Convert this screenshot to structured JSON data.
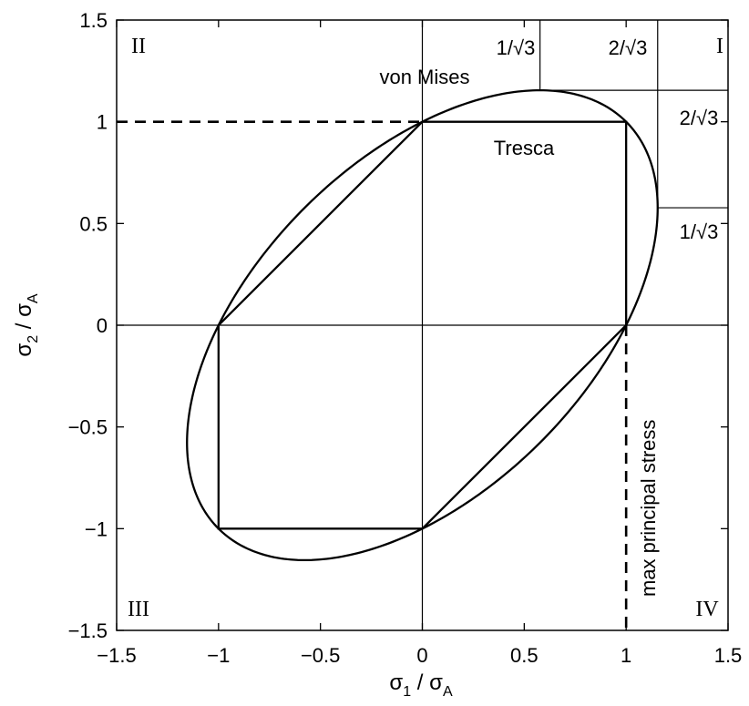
{
  "chart_data": {
    "type": "line",
    "title": "",
    "xlabel": {
      "symbol": "σ",
      "sub1": "1",
      "mid": " / σ",
      "sub2": "A"
    },
    "ylabel": {
      "symbol": "σ",
      "sub1": "2",
      "mid": " / σ",
      "sub2": "A"
    },
    "xlim": [
      -1.5,
      1.5
    ],
    "ylim": [
      -1.5,
      1.5
    ],
    "grid": false,
    "x_ticks": [
      {
        "value": -1.5,
        "label": "−1.5"
      },
      {
        "value": -1,
        "label": "−1"
      },
      {
        "value": -0.5,
        "label": "−0.5"
      },
      {
        "value": 0,
        "label": "0"
      },
      {
        "value": 0.5,
        "label": "0.5"
      },
      {
        "value": 1,
        "label": "1"
      },
      {
        "value": 1.5,
        "label": "1.5"
      }
    ],
    "y_ticks": [
      {
        "value": -1.5,
        "label": "−1.5"
      },
      {
        "value": -1,
        "label": "−1"
      },
      {
        "value": -0.5,
        "label": "−0.5"
      },
      {
        "value": 0,
        "label": "0"
      },
      {
        "value": 0.5,
        "label": "0.5"
      },
      {
        "value": 1,
        "label": "1"
      },
      {
        "value": 1.5,
        "label": "1.5"
      }
    ],
    "series": [
      {
        "kind": "ellipse",
        "equation": "x^2 - x*y + y^2 = 1",
        "label": "von Mises"
      },
      {
        "kind": "polygon",
        "label": "Tresca",
        "points": [
          [
            0,
            1
          ],
          [
            1,
            1
          ],
          [
            1,
            0
          ],
          [
            0,
            -1
          ],
          [
            -1,
            -1
          ],
          [
            -1,
            0
          ],
          [
            0,
            1
          ]
        ]
      },
      {
        "kind": "dashed",
        "label": "max principal stress",
        "points": [
          [
            -1.5,
            1
          ],
          [
            0,
            1
          ]
        ],
        "points2": [
          [
            1,
            0
          ],
          [
            1,
            -1.5
          ]
        ]
      }
    ],
    "reference_lines": {
      "x_zero": true,
      "y_zero": true,
      "x_markers": [
        {
          "value": 0.57735,
          "label": "1/√3"
        },
        {
          "value": 1.1547,
          "label": "2/√3"
        }
      ],
      "y_markers": [
        {
          "value": 1.1547,
          "label": "2/√3"
        },
        {
          "value": 0.57735,
          "label": "1/√3"
        }
      ]
    },
    "quadrants": {
      "q1": "I",
      "q2": "II",
      "q3": "III",
      "q4": "IV"
    }
  }
}
